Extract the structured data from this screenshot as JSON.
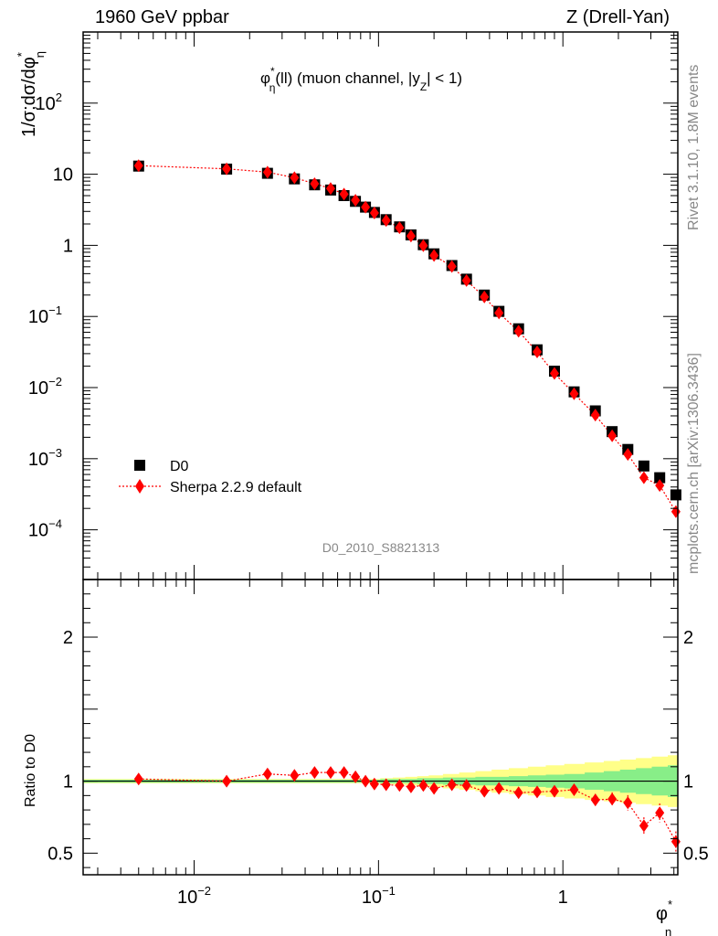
{
  "header": {
    "left": "1960 GeV ppbar",
    "right": "Z (Drell-Yan)"
  },
  "side": {
    "rivet": "Rivet 3.1.10,  1.8M events",
    "mcplots": "mcplots.cern.ch [arXiv:1306.3436]"
  },
  "watermark": "D0_2010_S8821313",
  "chart_data": {
    "type": "scatter",
    "title": "φ*η(ll) (muon channel, |yZ| < 1)",
    "title_parts": {
      "phi": "φ",
      "star": "*",
      "eta": "η",
      "mid": "(ll) (muon channel, |",
      "y": "y",
      "z": "Z",
      "end": "| < 1)"
    },
    "ylabel": "1/σ;dσ/dφ*η",
    "ylabel_parts": {
      "a": "1/σ;dσ/dφ",
      "star": "*",
      "eta": "η"
    },
    "xlabel": "φ*η",
    "xlabel_parts": {
      "phi": "φ",
      "star": "*",
      "eta": "η"
    },
    "ratio_ylabel": "Ratio to D0",
    "xscale": "log",
    "yscale": "log",
    "xlim": [
      0.0025,
      4.2
    ],
    "ylim": [
      2e-05,
      1000
    ],
    "ratio_ylim": [
      0.35,
      2.4
    ],
    "x_tick_labels": [
      {
        "v": 0.01,
        "base": "10",
        "exp": "−2"
      },
      {
        "v": 0.1,
        "base": "10",
        "exp": "−1"
      },
      {
        "v": 1,
        "base": "1",
        "exp": ""
      }
    ],
    "y_tick_labels": [
      {
        "v": 100,
        "base": "10",
        "exp": "2"
      },
      {
        "v": 10,
        "base": "10",
        "exp": ""
      },
      {
        "v": 1,
        "base": "1",
        "exp": ""
      },
      {
        "v": 0.1,
        "base": "10",
        "exp": "−1"
      },
      {
        "v": 0.01,
        "base": "10",
        "exp": "−2"
      },
      {
        "v": 0.001,
        "base": "10",
        "exp": "−3"
      },
      {
        "v": 0.0001,
        "base": "10",
        "exp": "−4"
      }
    ],
    "ratio_tick_labels": [
      {
        "v": 2,
        "text": "2"
      },
      {
        "v": 1,
        "text": "1"
      },
      {
        "v": 0.5,
        "text": "0.5"
      }
    ],
    "legend_position": "bottom-left",
    "x": [
      0.005,
      0.015,
      0.025,
      0.035,
      0.045,
      0.055,
      0.065,
      0.075,
      0.085,
      0.095,
      0.11,
      0.13,
      0.15,
      0.175,
      0.2,
      0.25,
      0.3,
      0.375,
      0.45,
      0.575,
      0.725,
      0.9,
      1.15,
      1.5,
      1.85,
      2.25,
      2.75,
      3.35,
      4.1
    ],
    "series": [
      {
        "name": "D0",
        "color": "#000000",
        "marker": "square",
        "values": [
          13.0,
          11.8,
          10.3,
          8.6,
          7.1,
          6.0,
          5.0,
          4.15,
          3.45,
          2.9,
          2.3,
          1.82,
          1.4,
          1.02,
          0.76,
          0.52,
          0.335,
          0.2,
          0.118,
          0.067,
          0.034,
          0.017,
          0.0087,
          0.0047,
          0.0024,
          0.00135,
          0.00079,
          0.00054,
          0.00031
        ]
      },
      {
        "name": "Sherpa 2.2.9 default",
        "color": "#ff0000",
        "marker": "diamond",
        "line": "dotted",
        "values": [
          13.2,
          11.9,
          10.7,
          8.95,
          7.35,
          6.3,
          5.25,
          4.3,
          3.45,
          2.85,
          2.23,
          1.77,
          1.35,
          0.99,
          0.72,
          0.505,
          0.32,
          0.188,
          0.112,
          0.062,
          0.0317,
          0.0158,
          0.0082,
          0.0041,
          0.0021,
          0.00115,
          0.00054,
          0.00042,
          0.00018
        ]
      }
    ],
    "ratio": {
      "values": [
        1.015,
        1.0,
        1.05,
        1.04,
        1.06,
        1.06,
        1.06,
        1.03,
        1.0,
        0.98,
        0.975,
        0.97,
        0.96,
        0.97,
        0.95,
        0.975,
        0.97,
        0.93,
        0.95,
        0.92,
        0.925,
        0.93,
        0.94,
        0.87,
        0.875,
        0.85,
        0.69,
        0.78,
        0.58
      ],
      "band_inner": [
        0.01,
        0.01,
        0.01,
        0.01,
        0.01,
        0.01,
        0.01,
        0.01,
        0.01,
        0.01,
        0.015,
        0.015,
        0.015,
        0.02,
        0.02,
        0.025,
        0.025,
        0.03,
        0.03,
        0.035,
        0.04,
        0.045,
        0.05,
        0.06,
        0.07,
        0.08,
        0.09,
        0.1,
        0.11
      ],
      "band_outer": [
        0.015,
        0.015,
        0.015,
        0.015,
        0.015,
        0.015,
        0.015,
        0.015,
        0.015,
        0.015,
        0.02,
        0.025,
        0.03,
        0.035,
        0.04,
        0.05,
        0.06,
        0.07,
        0.08,
        0.09,
        0.1,
        0.11,
        0.12,
        0.13,
        0.14,
        0.15,
        0.16,
        0.17,
        0.18
      ]
    }
  }
}
